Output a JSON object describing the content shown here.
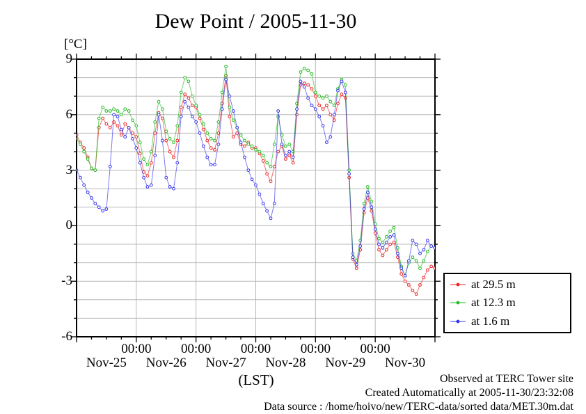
{
  "title": "Dew Point / 2005-11-30",
  "footer": {
    "line1": "Observed at TERC Tower site",
    "line2": "Created Automatically at 2005-11-30/23:32:08",
    "line3": "Data source : /home/hoivo/new/TERC-data/sorted  data/MET.30m.dat"
  },
  "chart_data": {
    "type": "line",
    "title": "Dew Point / 2005-11-30",
    "ylabel": "[°C]",
    "xlabel": "(LST)",
    "ylim": [
      -6,
      9
    ],
    "y_major_ticks": [
      9,
      6,
      3,
      0,
      -3,
      -6
    ],
    "y_minor_step": 1,
    "x_days": [
      "Nov-25",
      "Nov-26",
      "Nov-27",
      "Nov-28",
      "Nov-29",
      "Nov-30"
    ],
    "x_midnight_label": "00:00",
    "x_minor_step_hours": 6,
    "grid": true,
    "legend_position": "outside-right",
    "point_interval_hours": 1.5,
    "series": [
      {
        "name": "at 29.5 m",
        "color": "#ee2222",
        "values": [
          4.9,
          4.5,
          4.2,
          3.7,
          3.1,
          3.0,
          5.3,
          5.8,
          5.5,
          5.3,
          5.6,
          5.4,
          4.9,
          5.5,
          5.3,
          5.0,
          4.8,
          3.9,
          2.9,
          2.7,
          3.4,
          5.0,
          6.1,
          5.8,
          4.6,
          4.0,
          3.7,
          4.6,
          6.4,
          7.1,
          6.9,
          6.5,
          6.4,
          5.8,
          5.2,
          4.6,
          4.2,
          4.1,
          5.0,
          6.6,
          8.1,
          5.9,
          4.8,
          5.0,
          4.4,
          4.3,
          4.5,
          4.2,
          4.2,
          3.9,
          3.5,
          2.8,
          2.4,
          3.2,
          4.0,
          4.3,
          3.6,
          3.8,
          3.4,
          6.0,
          7.6,
          7.7,
          7.6,
          7.4,
          7.0,
          6.5,
          6.3,
          6.5,
          6.0,
          5.7,
          6.6,
          7.1,
          6.9,
          2.6,
          -1.8,
          -2.3,
          -1.3,
          0.7,
          1.5,
          0.8,
          -0.4,
          -1.3,
          -1.6,
          -1.3,
          -1.0,
          -0.9,
          -1.7,
          -2.6,
          -3.0,
          -3.2,
          -3.5,
          -3.7,
          -3.2,
          -2.8,
          -2.4,
          -2.2,
          -2.3
        ]
      },
      {
        "name": "at 12.3 m",
        "color": "#22bb22",
        "values": [
          4.7,
          4.4,
          4.0,
          3.6,
          3.1,
          3.0,
          5.8,
          6.4,
          6.2,
          6.2,
          6.3,
          6.2,
          6.0,
          6.3,
          6.2,
          5.7,
          5.4,
          4.5,
          3.6,
          3.3,
          4.0,
          5.6,
          6.7,
          6.3,
          5.1,
          4.7,
          4.5,
          5.4,
          7.2,
          8.0,
          7.8,
          7.0,
          6.5,
          6.0,
          5.5,
          5.0,
          4.7,
          4.6,
          5.6,
          7.2,
          8.6,
          6.4,
          5.7,
          5.3,
          4.9,
          4.6,
          4.4,
          4.3,
          4.1,
          4.0,
          3.8,
          3.4,
          3.2,
          4.4,
          5.9,
          4.9,
          4.3,
          4.4,
          4.0,
          6.6,
          8.3,
          8.5,
          8.4,
          8.2,
          7.2,
          7.0,
          6.9,
          7.0,
          6.7,
          6.5,
          7.4,
          7.9,
          7.6,
          3.0,
          -1.5,
          -1.9,
          -0.8,
          1.2,
          2.1,
          1.3,
          0.1,
          -0.7,
          -0.9,
          -0.6,
          -0.3,
          -0.1,
          -1.2,
          -2.2,
          -2.7,
          -2.0,
          -1.7,
          -1.9,
          -2.3,
          -1.9,
          -1.4,
          -1.1,
          -1.2
        ]
      },
      {
        "name": "at 1.6 m",
        "color": "#3333ee",
        "values": [
          3.0,
          2.6,
          2.2,
          1.8,
          1.5,
          1.2,
          1.0,
          0.8,
          0.9,
          3.2,
          6.0,
          5.9,
          5.2,
          4.8,
          5.3,
          4.7,
          4.2,
          3.4,
          2.6,
          2.1,
          2.2,
          3.8,
          6.0,
          4.6,
          2.6,
          2.1,
          2.0,
          3.4,
          5.9,
          6.7,
          6.4,
          5.9,
          5.6,
          5.0,
          4.3,
          3.7,
          3.3,
          3.3,
          4.4,
          6.3,
          7.9,
          7.0,
          6.2,
          5.3,
          4.5,
          3.7,
          3.0,
          2.5,
          2.2,
          1.7,
          1.2,
          0.8,
          0.4,
          1.2,
          6.2,
          4.4,
          3.8,
          4.0,
          3.7,
          6.3,
          7.8,
          7.5,
          6.9,
          6.5,
          6.3,
          5.9,
          5.4,
          4.5,
          4.8,
          6.0,
          7.3,
          7.8,
          7.2,
          2.8,
          -1.7,
          -2.1,
          -1.1,
          0.9,
          1.8,
          1.0,
          -0.2,
          -1.0,
          -1.2,
          -0.9,
          -0.6,
          -0.5,
          -1.5,
          -2.3,
          -2.7,
          -1.9,
          -0.8,
          -1.0,
          -1.5,
          -1.3,
          -0.8,
          -1.1,
          -1.2
        ]
      }
    ]
  }
}
